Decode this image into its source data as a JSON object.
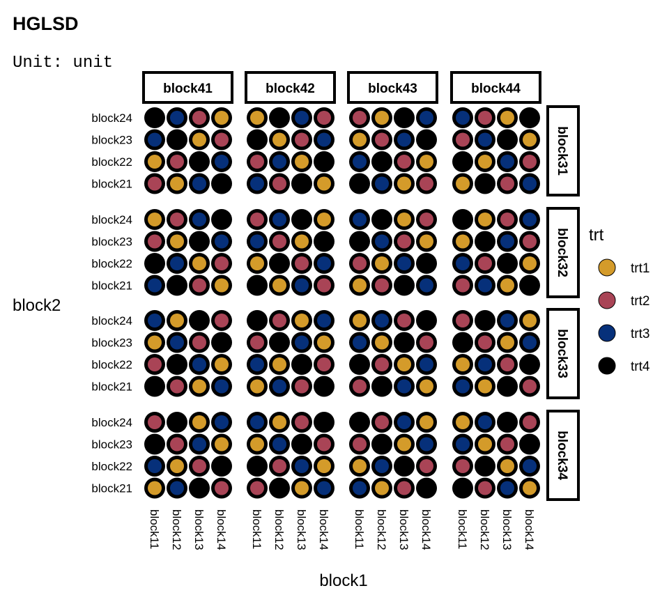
{
  "chart_data": {
    "type": "scatter",
    "title": "HGLSD",
    "subtitle": "Unit: unit",
    "xlabel": "block1",
    "ylabel": "block2",
    "x_categories": [
      "block11",
      "block12",
      "block13",
      "block14"
    ],
    "y_categories": [
      "block24",
      "block23",
      "block22",
      "block21"
    ],
    "facet_cols": [
      "block41",
      "block42",
      "block43",
      "block44"
    ],
    "facet_rows": [
      "block31",
      "block32",
      "block33",
      "block34"
    ],
    "legend": {
      "title": "trt",
      "position": "right",
      "levels": [
        "trt1",
        "trt2",
        "trt3",
        "trt4"
      ],
      "colors": [
        "#D49B2A",
        "#A94456",
        "#06307A",
        "#000000"
      ]
    },
    "grid_note": "cells[facet_row][facet_col][y_row from block24 to block21][x col block11..block14] = trt level number (1-4)",
    "cells": [
      [
        [
          [
            4,
            3,
            2,
            1
          ],
          [
            3,
            4,
            1,
            2
          ],
          [
            1,
            2,
            4,
            3
          ],
          [
            2,
            1,
            3,
            4
          ]
        ],
        [
          [
            1,
            4,
            3,
            2
          ],
          [
            4,
            1,
            2,
            3
          ],
          [
            2,
            3,
            1,
            4
          ],
          [
            3,
            2,
            4,
            1
          ]
        ],
        [
          [
            2,
            1,
            4,
            3
          ],
          [
            1,
            2,
            3,
            4
          ],
          [
            3,
            4,
            2,
            1
          ],
          [
            4,
            3,
            1,
            2
          ]
        ],
        [
          [
            3,
            2,
            1,
            4
          ],
          [
            2,
            3,
            4,
            1
          ],
          [
            4,
            1,
            3,
            2
          ],
          [
            1,
            4,
            2,
            3
          ]
        ]
      ],
      [
        [
          [
            1,
            2,
            3,
            4
          ],
          [
            2,
            1,
            4,
            3
          ],
          [
            4,
            3,
            1,
            2
          ],
          [
            3,
            4,
            2,
            1
          ]
        ],
        [
          [
            2,
            3,
            4,
            1
          ],
          [
            3,
            2,
            1,
            4
          ],
          [
            1,
            4,
            2,
            3
          ],
          [
            4,
            1,
            3,
            2
          ]
        ],
        [
          [
            3,
            4,
            1,
            2
          ],
          [
            4,
            3,
            2,
            1
          ],
          [
            2,
            1,
            3,
            4
          ],
          [
            1,
            2,
            4,
            3
          ]
        ],
        [
          [
            4,
            1,
            2,
            3
          ],
          [
            1,
            4,
            3,
            2
          ],
          [
            3,
            2,
            4,
            1
          ],
          [
            2,
            3,
            1,
            4
          ]
        ]
      ],
      [
        [
          [
            3,
            1,
            4,
            2
          ],
          [
            1,
            3,
            2,
            4
          ],
          [
            2,
            4,
            3,
            1
          ],
          [
            4,
            2,
            1,
            3
          ]
        ],
        [
          [
            4,
            2,
            1,
            3
          ],
          [
            2,
            4,
            3,
            1
          ],
          [
            3,
            1,
            4,
            2
          ],
          [
            1,
            3,
            2,
            4
          ]
        ],
        [
          [
            1,
            3,
            2,
            4
          ],
          [
            3,
            1,
            4,
            2
          ],
          [
            4,
            2,
            1,
            3
          ],
          [
            2,
            4,
            3,
            1
          ]
        ],
        [
          [
            2,
            4,
            3,
            1
          ],
          [
            4,
            2,
            1,
            3
          ],
          [
            1,
            3,
            2,
            4
          ],
          [
            3,
            1,
            4,
            2
          ]
        ]
      ],
      [
        [
          [
            2,
            4,
            1,
            3
          ],
          [
            4,
            2,
            3,
            1
          ],
          [
            3,
            1,
            2,
            4
          ],
          [
            1,
            3,
            4,
            2
          ]
        ],
        [
          [
            3,
            1,
            2,
            4
          ],
          [
            1,
            3,
            4,
            2
          ],
          [
            4,
            2,
            3,
            1
          ],
          [
            2,
            4,
            1,
            3
          ]
        ],
        [
          [
            4,
            2,
            3,
            1
          ],
          [
            2,
            4,
            1,
            3
          ],
          [
            1,
            3,
            4,
            2
          ],
          [
            3,
            1,
            2,
            4
          ]
        ],
        [
          [
            1,
            3,
            4,
            2
          ],
          [
            3,
            1,
            2,
            4
          ],
          [
            2,
            4,
            1,
            3
          ],
          [
            4,
            2,
            3,
            1
          ]
        ]
      ]
    ]
  }
}
